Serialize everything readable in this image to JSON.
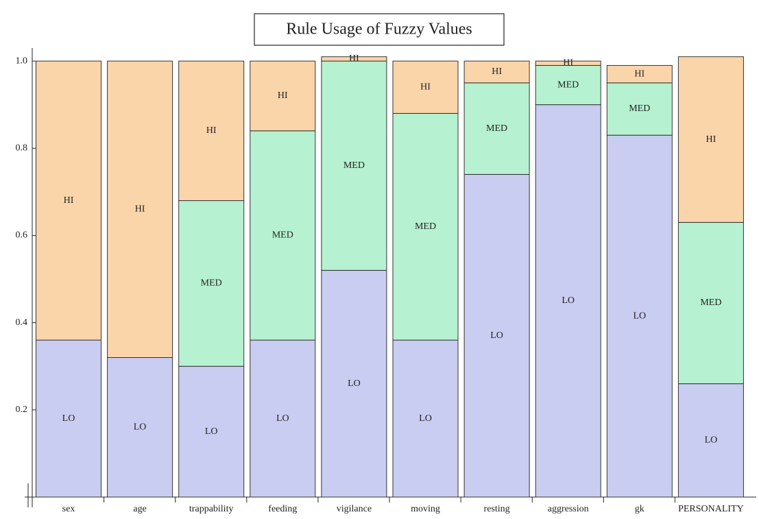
{
  "chart_data": {
    "type": "stacked_bar",
    "title": "Rule Usage of Fuzzy Values",
    "categories": [
      "sex",
      "age",
      "trappability",
      "feeding",
      "vigilance",
      "moving",
      "resting",
      "aggression",
      "gk",
      "PERSONALITY"
    ],
    "series": [
      {
        "name": "LO",
        "color": "#c9cdf1",
        "values": [
          0.36,
          0.32,
          0.3,
          0.36,
          0.52,
          0.36,
          0.74,
          0.9,
          0.83,
          0.26
        ]
      },
      {
        "name": "MED",
        "color": "#b6f2d1",
        "values": [
          null,
          null,
          0.38,
          0.48,
          0.48,
          0.52,
          0.21,
          0.09,
          0.12,
          0.37
        ]
      },
      {
        "name": "HI",
        "color": "#fbd5aa",
        "values": [
          0.64,
          0.68,
          0.32,
          0.16,
          0.01,
          0.12,
          0.05,
          0.01,
          0.04,
          0.38
        ]
      }
    ],
    "ylim": [
      0,
      1.03
    ],
    "yticks": [
      0.2,
      0.4,
      0.6,
      {
        "value": 0.8,
        "label": "0.8"
      },
      {
        "value": 1,
        "label": "1.0"
      }
    ]
  }
}
